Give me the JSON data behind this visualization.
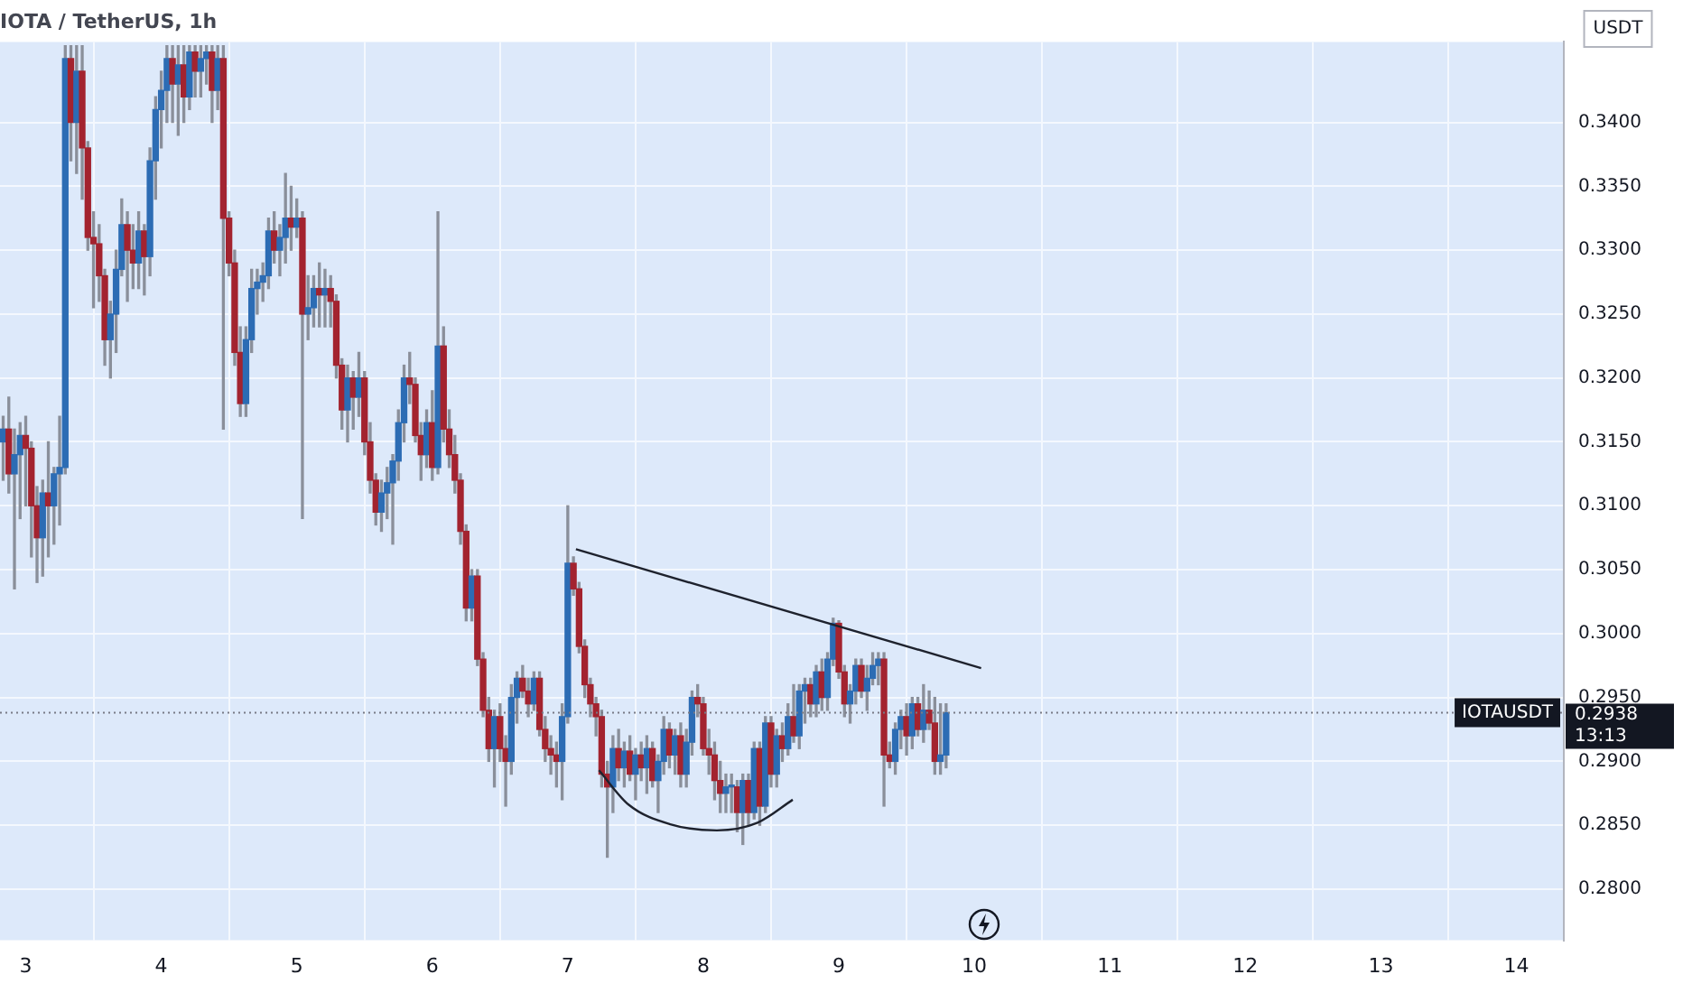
{
  "chart_data": {
    "type": "candlestick",
    "title": "IOTA / TetherUS, 1h",
    "ylabel": "USDT",
    "colors": [
      "#2c6cb4",
      "#a3232f",
      "#2c6cb4",
      "#2c6cb4",
      "#a3232f",
      "#a3232f",
      "#a3232f",
      "#2c6cb4",
      "#a3232f",
      "#2c6cb4",
      "#2c6cb4",
      "#2c6cb4",
      "#a3232f",
      "#2c6cb4",
      "#a3232f",
      "#a3232f",
      "#a3232f",
      "#a3232f",
      "#a3232f",
      "#2c6cb4",
      "#2c6cb4",
      "#2c6cb4",
      "#a3232f",
      "#a3232f",
      "#2c6cb4",
      "#a3232f",
      "#2c6cb4",
      "#2c6cb4",
      "#2c6cb4",
      "#2c6cb4",
      "#a3232f",
      "#2c6cb4",
      "#a3232f",
      "#2c6cb4",
      "#a3232f",
      "#2c6cb4",
      "#2c6cb4",
      "#a3232f",
      "#2c6cb4",
      "#a3232f",
      "#a3232f",
      "#a3232f",
      "#a3232f",
      "#2c6cb4",
      "#2c6cb4",
      "#2c6cb4",
      "#2c6cb4",
      "#2c6cb4",
      "#a3232f",
      "#2c6cb4",
      "#2c6cb4",
      "#a3232f",
      "#2c6cb4",
      "#a3232f",
      "#2c6cb4",
      "#2c6cb4",
      "#a3232f",
      "#2c6cb4",
      "#a3232f",
      "#a3232f",
      "#a3232f",
      "#2c6cb4",
      "#a3232f",
      "#2c6cb4",
      "#a3232f",
      "#a3232f",
      "#a3232f",
      "#2c6cb4",
      "#2c6cb4",
      "#2c6cb4",
      "#2c6cb4",
      "#2c6cb4",
      "#a3232f",
      "#a3232f",
      "#a3232f",
      "#2c6cb4",
      "#a3232f",
      "#2c6cb4",
      "#a3232f",
      "#a3232f",
      "#a3232f",
      "#a3232f",
      "#a3232f",
      "#2c6cb4",
      "#a3232f",
      "#a3232f",
      "#a3232f",
      "#2c6cb4",
      "#a3232f",
      "#a3232f",
      "#2c6cb4",
      "#2c6cb4",
      "#a3232f",
      "#a3232f",
      "#2c6cb4",
      "#a3232f",
      "#a3232f",
      "#a3232f",
      "#a3232f",
      "#2c6cb4",
      "#2c6cb4",
      "#a3232f",
      "#a3232f",
      "#a3232f",
      "#a3232f",
      "#a3232f",
      "#a3232f",
      "#a3232f",
      "#2c6cb4",
      "#a3232f",
      "#2c6cb4",
      "#a3232f",
      "#2c6cb4",
      "#a3232f",
      "#2c6cb4",
      "#a3232f",
      "#2c6cb4",
      "#2c6cb4",
      "#a3232f",
      "#2c6cb4",
      "#a3232f",
      "#2c6cb4",
      "#2c6cb4",
      "#a3232f",
      "#a3232f",
      "#a3232f",
      "#a3232f",
      "#a3232f",
      "#2c6cb4",
      "#2c6cb4",
      "#a3232f",
      "#2c6cb4",
      "#a3232f",
      "#2c6cb4",
      "#a3232f",
      "#2c6cb4",
      "#a3232f",
      "#2c6cb4",
      "#a3232f",
      "#2c6cb4",
      "#a3232f",
      "#2c6cb4",
      "#2c6cb4",
      "#a3232f",
      "#2c6cb4",
      "#a3232f",
      "#2c6cb4",
      "#2c6cb4",
      "#a3232f",
      "#a3232f",
      "#2c6cb4",
      "#2c6cb4",
      "#a3232f",
      "#2c6cb4",
      "#2c6cb4",
      "#2c6cb4",
      "#a3232f",
      "#a3232f",
      "#2c6cb4",
      "#2c6cb4",
      "#a3232f",
      "#2c6cb4",
      "#a3232f",
      "#2c6cb4",
      "#a3232f",
      "#a3232f",
      "#2c6cb4",
      "#2c6cb4"
    ],
    "x": [
      2.8333,
      2.875,
      2.9167,
      2.9583,
      3.0,
      3.0417,
      3.0833,
      3.125,
      3.1667,
      3.2083,
      3.25,
      3.2917,
      3.3333,
      3.375,
      3.4167,
      3.4583,
      3.5,
      3.5417,
      3.5833,
      3.625,
      3.6667,
      3.7083,
      3.75,
      3.7917,
      3.8333,
      3.875,
      3.9167,
      3.9583,
      4.0,
      4.0417,
      4.0833,
      4.125,
      4.1667,
      4.2083,
      4.25,
      4.2917,
      4.3333,
      4.375,
      4.4167,
      4.4583,
      4.5,
      4.5417,
      4.5833,
      4.625,
      4.6667,
      4.7083,
      4.75,
      4.7917,
      4.8333,
      4.875,
      4.9167,
      4.9583,
      5.0,
      5.0417,
      5.0833,
      5.125,
      5.1667,
      5.2083,
      5.25,
      5.2917,
      5.3333,
      5.375,
      5.4167,
      5.4583,
      5.5,
      5.5417,
      5.5833,
      5.625,
      5.6667,
      5.7083,
      5.75,
      5.7917,
      5.8333,
      5.875,
      5.9167,
      5.9583,
      6.0,
      6.0417,
      6.0833,
      6.125,
      6.1667,
      6.2083,
      6.25,
      6.2917,
      6.3333,
      6.375,
      6.4167,
      6.4583,
      6.5,
      6.5417,
      6.5833,
      6.625,
      6.6667,
      6.7083,
      6.75,
      6.7917,
      6.8333,
      6.875,
      6.9167,
      6.9583,
      7.0,
      7.0417,
      7.0833,
      7.125,
      7.1667,
      7.2083,
      7.25,
      7.2917,
      7.3333,
      7.375,
      7.4167,
      7.4583,
      7.5,
      7.5417,
      7.5833,
      7.625,
      7.6667,
      7.7083,
      7.75,
      7.7917,
      7.8333,
      7.875,
      7.9167,
      7.9583,
      8.0,
      8.0417,
      8.0833,
      8.125,
      8.1667,
      8.2083,
      8.25,
      8.2917,
      8.3333,
      8.375,
      8.4167,
      8.4583,
      8.5,
      8.5417,
      8.5833,
      8.625,
      8.6667,
      8.7083,
      8.75,
      8.7917,
      8.8333,
      8.875,
      8.9167,
      8.9583,
      9.0,
      9.0417,
      9.0833,
      9.125,
      9.1667,
      9.2083,
      9.25,
      9.2917,
      9.3333,
      9.375,
      9.4167,
      9.4583,
      9.5,
      9.5417,
      9.5833,
      9.625,
      9.6667,
      9.7083,
      9.75,
      9.7917
    ],
    "ohlc": [
      [
        0.315,
        0.317,
        0.312,
        0.316
      ],
      [
        0.316,
        0.3185,
        0.311,
        0.3125
      ],
      [
        0.3125,
        0.316,
        0.3035,
        0.314
      ],
      [
        0.314,
        0.3165,
        0.309,
        0.3155
      ],
      [
        0.3155,
        0.317,
        0.31,
        0.3145
      ],
      [
        0.3145,
        0.315,
        0.306,
        0.31
      ],
      [
        0.31,
        0.3115,
        0.304,
        0.3075
      ],
      [
        0.3075,
        0.312,
        0.3045,
        0.311
      ],
      [
        0.311,
        0.315,
        0.306,
        0.31
      ],
      [
        0.31,
        0.313,
        0.307,
        0.3125
      ],
      [
        0.3125,
        0.317,
        0.3085,
        0.313
      ],
      [
        0.313,
        0.346,
        0.3125,
        0.345
      ],
      [
        0.345,
        0.346,
        0.337,
        0.34
      ],
      [
        0.34,
        0.346,
        0.336,
        0.344
      ],
      [
        0.344,
        0.346,
        0.334,
        0.338
      ],
      [
        0.338,
        0.3385,
        0.33,
        0.331
      ],
      [
        0.331,
        0.333,
        0.3255,
        0.3305
      ],
      [
        0.3305,
        0.332,
        0.326,
        0.328
      ],
      [
        0.328,
        0.3285,
        0.321,
        0.323
      ],
      [
        0.323,
        0.326,
        0.32,
        0.325
      ],
      [
        0.325,
        0.33,
        0.322,
        0.3285
      ],
      [
        0.3285,
        0.334,
        0.328,
        0.332
      ],
      [
        0.332,
        0.333,
        0.326,
        0.33
      ],
      [
        0.33,
        0.332,
        0.327,
        0.329
      ],
      [
        0.329,
        0.333,
        0.327,
        0.3315
      ],
      [
        0.3315,
        0.332,
        0.3265,
        0.3295
      ],
      [
        0.3295,
        0.338,
        0.328,
        0.337
      ],
      [
        0.337,
        0.342,
        0.334,
        0.341
      ],
      [
        0.341,
        0.344,
        0.338,
        0.3425
      ],
      [
        0.3425,
        0.346,
        0.34,
        0.345
      ],
      [
        0.345,
        0.346,
        0.34,
        0.343
      ],
      [
        0.343,
        0.346,
        0.339,
        0.3445
      ],
      [
        0.3445,
        0.346,
        0.34,
        0.342
      ],
      [
        0.342,
        0.346,
        0.341,
        0.3455
      ],
      [
        0.3455,
        0.346,
        0.342,
        0.344
      ],
      [
        0.344,
        0.346,
        0.342,
        0.345
      ],
      [
        0.345,
        0.346,
        0.343,
        0.3455
      ],
      [
        0.3455,
        0.346,
        0.34,
        0.3425
      ],
      [
        0.3425,
        0.346,
        0.341,
        0.345
      ],
      [
        0.345,
        0.346,
        0.316,
        0.3325
      ],
      [
        0.3325,
        0.333,
        0.328,
        0.329
      ],
      [
        0.329,
        0.33,
        0.321,
        0.322
      ],
      [
        0.322,
        0.324,
        0.317,
        0.318
      ],
      [
        0.318,
        0.324,
        0.317,
        0.323
      ],
      [
        0.323,
        0.3285,
        0.322,
        0.327
      ],
      [
        0.327,
        0.3285,
        0.325,
        0.3275
      ],
      [
        0.3275,
        0.329,
        0.326,
        0.328
      ],
      [
        0.328,
        0.3325,
        0.327,
        0.3315
      ],
      [
        0.3315,
        0.333,
        0.329,
        0.33
      ],
      [
        0.33,
        0.332,
        0.328,
        0.331
      ],
      [
        0.331,
        0.336,
        0.329,
        0.3325
      ],
      [
        0.3325,
        0.335,
        0.33,
        0.3318
      ],
      [
        0.3318,
        0.334,
        0.331,
        0.3325
      ],
      [
        0.3325,
        0.333,
        0.309,
        0.325
      ],
      [
        0.325,
        0.328,
        0.323,
        0.3255
      ],
      [
        0.3255,
        0.328,
        0.324,
        0.327
      ],
      [
        0.327,
        0.329,
        0.324,
        0.3265
      ],
      [
        0.3265,
        0.3285,
        0.324,
        0.327
      ],
      [
        0.327,
        0.328,
        0.324,
        0.326
      ],
      [
        0.326,
        0.3265,
        0.32,
        0.321
      ],
      [
        0.321,
        0.3215,
        0.316,
        0.3175
      ],
      [
        0.3175,
        0.321,
        0.315,
        0.32
      ],
      [
        0.32,
        0.3205,
        0.316,
        0.3185
      ],
      [
        0.3185,
        0.322,
        0.317,
        0.32
      ],
      [
        0.32,
        0.3205,
        0.314,
        0.315
      ],
      [
        0.315,
        0.3165,
        0.311,
        0.312
      ],
      [
        0.312,
        0.3125,
        0.3085,
        0.3095
      ],
      [
        0.3095,
        0.312,
        0.308,
        0.311
      ],
      [
        0.311,
        0.313,
        0.309,
        0.3118
      ],
      [
        0.3118,
        0.314,
        0.307,
        0.3135
      ],
      [
        0.3135,
        0.3175,
        0.312,
        0.3165
      ],
      [
        0.3165,
        0.321,
        0.315,
        0.32
      ],
      [
        0.32,
        0.322,
        0.318,
        0.3195
      ],
      [
        0.3195,
        0.32,
        0.315,
        0.3155
      ],
      [
        0.3155,
        0.3165,
        0.312,
        0.314
      ],
      [
        0.314,
        0.3175,
        0.313,
        0.3165
      ],
      [
        0.3165,
        0.319,
        0.312,
        0.313
      ],
      [
        0.313,
        0.333,
        0.3125,
        0.3225
      ],
      [
        0.3225,
        0.324,
        0.315,
        0.316
      ],
      [
        0.316,
        0.3175,
        0.313,
        0.314
      ],
      [
        0.314,
        0.3155,
        0.311,
        0.312
      ],
      [
        0.312,
        0.3125,
        0.307,
        0.308
      ],
      [
        0.308,
        0.3085,
        0.301,
        0.302
      ],
      [
        0.302,
        0.305,
        0.301,
        0.3045
      ],
      [
        0.3045,
        0.305,
        0.2975,
        0.298
      ],
      [
        0.298,
        0.2985,
        0.2935,
        0.294
      ],
      [
        0.294,
        0.295,
        0.29,
        0.291
      ],
      [
        0.291,
        0.294,
        0.288,
        0.2935
      ],
      [
        0.2935,
        0.2945,
        0.29,
        0.291
      ],
      [
        0.291,
        0.292,
        0.2865,
        0.29
      ],
      [
        0.29,
        0.296,
        0.289,
        0.295
      ],
      [
        0.295,
        0.297,
        0.293,
        0.2965
      ],
      [
        0.2965,
        0.2975,
        0.295,
        0.2955
      ],
      [
        0.2955,
        0.2965,
        0.2935,
        0.2945
      ],
      [
        0.2945,
        0.297,
        0.294,
        0.2965
      ],
      [
        0.2965,
        0.297,
        0.292,
        0.2925
      ],
      [
        0.2925,
        0.2935,
        0.29,
        0.291
      ],
      [
        0.291,
        0.292,
        0.289,
        0.2905
      ],
      [
        0.2905,
        0.2915,
        0.288,
        0.29
      ],
      [
        0.29,
        0.2945,
        0.287,
        0.2935
      ],
      [
        0.2935,
        0.31,
        0.293,
        0.3055
      ],
      [
        0.3055,
        0.306,
        0.303,
        0.3035
      ],
      [
        0.3035,
        0.304,
        0.2985,
        0.299
      ],
      [
        0.299,
        0.2995,
        0.295,
        0.296
      ],
      [
        0.296,
        0.2965,
        0.2935,
        0.2945
      ],
      [
        0.2945,
        0.295,
        0.292,
        0.2935
      ],
      [
        0.2935,
        0.294,
        0.288,
        0.289
      ],
      [
        0.289,
        0.29,
        0.2825,
        0.288
      ],
      [
        0.288,
        0.292,
        0.286,
        0.291
      ],
      [
        0.291,
        0.2925,
        0.2885,
        0.2895
      ],
      [
        0.2895,
        0.2915,
        0.288,
        0.2908
      ],
      [
        0.2908,
        0.292,
        0.2885,
        0.289
      ],
      [
        0.289,
        0.291,
        0.287,
        0.2905
      ],
      [
        0.2905,
        0.2915,
        0.2885,
        0.2895
      ],
      [
        0.2895,
        0.292,
        0.2875,
        0.291
      ],
      [
        0.291,
        0.2915,
        0.288,
        0.2885
      ],
      [
        0.2885,
        0.2905,
        0.286,
        0.29
      ],
      [
        0.29,
        0.2935,
        0.289,
        0.2925
      ],
      [
        0.2925,
        0.293,
        0.2895,
        0.2905
      ],
      [
        0.2905,
        0.2925,
        0.289,
        0.292
      ],
      [
        0.292,
        0.293,
        0.288,
        0.289
      ],
      [
        0.289,
        0.2925,
        0.288,
        0.2915
      ],
      [
        0.2915,
        0.2955,
        0.2905,
        0.295
      ],
      [
        0.295,
        0.296,
        0.2935,
        0.2945
      ],
      [
        0.2945,
        0.295,
        0.2905,
        0.291
      ],
      [
        0.291,
        0.2925,
        0.289,
        0.2905
      ],
      [
        0.2905,
        0.2915,
        0.287,
        0.2885
      ],
      [
        0.2885,
        0.29,
        0.286,
        0.2875
      ],
      [
        0.2875,
        0.289,
        0.286,
        0.288
      ],
      [
        0.288,
        0.289,
        0.286,
        0.288
      ],
      [
        0.288,
        0.2885,
        0.2845,
        0.286
      ],
      [
        0.286,
        0.289,
        0.2835,
        0.2885
      ],
      [
        0.2885,
        0.289,
        0.285,
        0.286
      ],
      [
        0.286,
        0.2915,
        0.2855,
        0.291
      ],
      [
        0.291,
        0.2915,
        0.285,
        0.2865
      ],
      [
        0.2865,
        0.2935,
        0.286,
        0.293
      ],
      [
        0.293,
        0.2935,
        0.288,
        0.289
      ],
      [
        0.289,
        0.2925,
        0.288,
        0.292
      ],
      [
        0.292,
        0.293,
        0.29,
        0.291
      ],
      [
        0.291,
        0.2945,
        0.2905,
        0.2935
      ],
      [
        0.2935,
        0.296,
        0.2915,
        0.292
      ],
      [
        0.292,
        0.296,
        0.291,
        0.2955
      ],
      [
        0.2955,
        0.2965,
        0.293,
        0.296
      ],
      [
        0.296,
        0.2965,
        0.2935,
        0.2945
      ],
      [
        0.2945,
        0.2975,
        0.2935,
        0.297
      ],
      [
        0.297,
        0.298,
        0.294,
        0.295
      ],
      [
        0.295,
        0.2985,
        0.294,
        0.298
      ],
      [
        0.298,
        0.3012,
        0.2975,
        0.3008
      ],
      [
        0.3008,
        0.301,
        0.2965,
        0.297
      ],
      [
        0.297,
        0.2975,
        0.2935,
        0.2945
      ],
      [
        0.2945,
        0.296,
        0.293,
        0.2955
      ],
      [
        0.2955,
        0.298,
        0.2945,
        0.2975
      ],
      [
        0.2975,
        0.298,
        0.295,
        0.2955
      ],
      [
        0.2955,
        0.2975,
        0.294,
        0.2965
      ],
      [
        0.2965,
        0.2985,
        0.296,
        0.2975
      ],
      [
        0.2975,
        0.2985,
        0.296,
        0.298
      ],
      [
        0.298,
        0.2985,
        0.2865,
        0.2905
      ],
      [
        0.2905,
        0.2915,
        0.2895,
        0.29
      ],
      [
        0.29,
        0.293,
        0.289,
        0.2925
      ],
      [
        0.2925,
        0.294,
        0.291,
        0.2935
      ],
      [
        0.2935,
        0.2945,
        0.2905,
        0.292
      ],
      [
        0.292,
        0.295,
        0.291,
        0.2945
      ],
      [
        0.2945,
        0.295,
        0.292,
        0.2925
      ],
      [
        0.2925,
        0.296,
        0.2915,
        0.294
      ],
      [
        0.294,
        0.2955,
        0.2925,
        0.293
      ],
      [
        0.293,
        0.295,
        0.289,
        0.29
      ],
      [
        0.29,
        0.2945,
        0.289,
        0.2905
      ],
      [
        0.2905,
        0.2945,
        0.2895,
        0.2938
      ]
    ],
    "series": [
      {
        "type": "line",
        "color": "#1e222d",
        "x": [
          7.06,
          10.05
        ],
        "values": [
          0.3066,
          0.2973
        ]
      },
      {
        "type": "line",
        "color": "#1e222d",
        "x": [
          7.23,
          7.45,
          7.75,
          8.1,
          8.4,
          8.66
        ],
        "values": [
          0.2893,
          0.2866,
          0.2851,
          0.2846,
          0.2852,
          0.287
        ]
      }
    ],
    "ref_lines": [
      {
        "axis": "y",
        "value": 0.2938,
        "label": "IOTAUSDT",
        "color": "#787b86",
        "line_style": "dotted"
      }
    ],
    "annotations": [
      "0.2938",
      "13:13"
    ],
    "xlim": [
      2.81,
      14.35
    ],
    "ylim": [
      0.276,
      0.3463
    ],
    "xticks": [
      3,
      4,
      5,
      6,
      7,
      8,
      9,
      10,
      11,
      12,
      13,
      14
    ],
    "yticks": [
      {
        "value": 0.28,
        "label": "0.2800"
      },
      {
        "value": 0.285,
        "label": "0.2850"
      },
      {
        "value": 0.29,
        "label": "0.2900"
      },
      {
        "value": 0.295,
        "label": "0.2950"
      },
      {
        "value": 0.3,
        "label": "0.3000"
      },
      {
        "value": 0.305,
        "label": "0.3050"
      },
      {
        "value": 0.31,
        "label": "0.3100"
      },
      {
        "value": 0.315,
        "label": "0.3150"
      },
      {
        "value": 0.32,
        "label": "0.3200"
      },
      {
        "value": 0.325,
        "label": "0.3250"
      },
      {
        "value": 0.33,
        "label": "0.3300"
      },
      {
        "value": 0.335,
        "label": "0.3350"
      },
      {
        "value": 0.34,
        "label": "0.3400"
      }
    ],
    "grid": true,
    "legend": false
  }
}
